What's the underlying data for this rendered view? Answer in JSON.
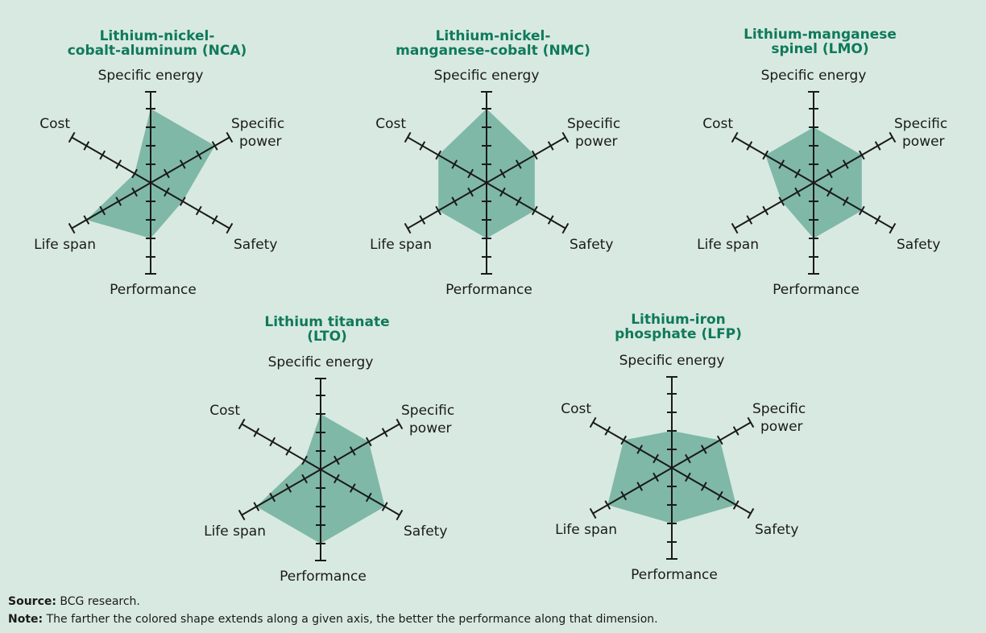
{
  "axes": [
    "Specific energy",
    "Specific power",
    "Safety",
    "Performance",
    "Life span",
    "Cost"
  ],
  "chart_data": [
    {
      "type": "radar",
      "title": [
        "Lithium-nickel-",
        "cobalt-aluminum (NCA)"
      ],
      "axes": [
        "Specific energy",
        "Specific power",
        "Safety",
        "Performance",
        "Life span",
        "Cost"
      ],
      "max": 4,
      "values": [
        4,
        4,
        2,
        3,
        4,
        1
      ]
    },
    {
      "type": "radar",
      "title": [
        "Lithium-nickel-",
        "manganese-cobalt (NMC)"
      ],
      "axes": [
        "Specific energy",
        "Specific power",
        "Safety",
        "Performance",
        "Life span",
        "Cost"
      ],
      "max": 4,
      "values": [
        4,
        3,
        3,
        3,
        3,
        3
      ]
    },
    {
      "type": "radar",
      "title": [
        "Lithium-manganese",
        "spinel (LMO)"
      ],
      "axes": [
        "Specific energy",
        "Specific power",
        "Safety",
        "Performance",
        "Life span",
        "Cost"
      ],
      "max": 4,
      "values": [
        3,
        3,
        3,
        3,
        2,
        3
      ]
    },
    {
      "type": "radar",
      "title": [
        "Lithium titanate",
        "(LTO)"
      ],
      "axes": [
        "Specific energy",
        "Specific power",
        "Safety",
        "Performance",
        "Life span",
        "Cost"
      ],
      "max": 4,
      "values": [
        3,
        3,
        4,
        4,
        4,
        1
      ]
    },
    {
      "type": "radar",
      "title": [
        "Lithium-iron",
        "phosphate (LFP)"
      ],
      "axes": [
        "Specific energy",
        "Specific power",
        "Safety",
        "Performance",
        "Life span",
        "Cost"
      ],
      "max": 4,
      "values": [
        2,
        3,
        4,
        3,
        4,
        3
      ]
    }
  ],
  "footer": {
    "source_label": "Source:",
    "source_text": "BCG research.",
    "note_label": "Note:",
    "note_text": "The farther the colored shape extends along a given axis, the better the performance along that dimension."
  },
  "colors": {
    "shape": "#7fb8a6",
    "title": "#0f7a5a",
    "background": "#d8e9e2"
  }
}
